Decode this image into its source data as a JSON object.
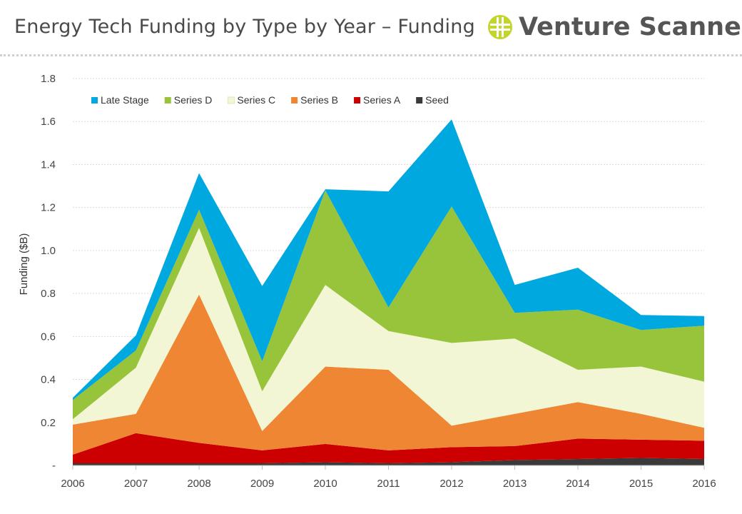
{
  "header": {
    "title": "Energy Tech Funding by Type by Year – Funding",
    "brand": "Venture Scanner"
  },
  "colors": {
    "late_stage": "#00a8e0",
    "series_d": "#98c43c",
    "series_c": "#f3f6d4",
    "series_b": "#ef8633",
    "series_a": "#cc0000",
    "seed": "#3a3a3a",
    "logo": "#c3d52b"
  },
  "chart_data": {
    "type": "area",
    "stacked": true,
    "title": "Energy Tech Funding by Type by Year – Funding",
    "xlabel": "",
    "ylabel": "Funding ($B)",
    "x": [
      "2006",
      "2007",
      "2008",
      "2009",
      "2010",
      "2011",
      "2012",
      "2013",
      "2014",
      "2015",
      "2016"
    ],
    "ylim": [
      0,
      1.8
    ],
    "yticks": [
      0,
      0.2,
      0.4,
      0.6,
      0.8,
      1.0,
      1.2,
      1.4,
      1.6,
      1.8
    ],
    "ytick_labels": [
      "-",
      "0.2",
      "0.4",
      "0.6",
      "0.8",
      "1.0",
      "1.2",
      "1.4",
      "1.6",
      "1.8"
    ],
    "grid": true,
    "legend_position": "top-left",
    "series": [
      {
        "name": "Seed",
        "color": "#3a3a3a",
        "values": [
          0.01,
          0.01,
          0.01,
          0.01,
          0.015,
          0.01,
          0.015,
          0.025,
          0.03,
          0.035,
          0.03
        ]
      },
      {
        "name": "Series A",
        "color": "#cc0000",
        "values": [
          0.04,
          0.14,
          0.095,
          0.06,
          0.085,
          0.06,
          0.07,
          0.065,
          0.095,
          0.085,
          0.085
        ]
      },
      {
        "name": "Series B",
        "color": "#ef8633",
        "values": [
          0.14,
          0.09,
          0.69,
          0.09,
          0.36,
          0.375,
          0.1,
          0.15,
          0.17,
          0.12,
          0.06
        ]
      },
      {
        "name": "Series C",
        "color": "#f3f6d4",
        "values": [
          0.025,
          0.215,
          0.31,
          0.185,
          0.38,
          0.18,
          0.385,
          0.35,
          0.15,
          0.22,
          0.215
        ]
      },
      {
        "name": "Series D",
        "color": "#98c43c",
        "values": [
          0.09,
          0.08,
          0.085,
          0.14,
          0.44,
          0.11,
          0.635,
          0.12,
          0.28,
          0.17,
          0.26
        ]
      },
      {
        "name": "Late Stage",
        "color": "#00a8e0",
        "values": [
          0.01,
          0.07,
          0.17,
          0.35,
          0.005,
          0.54,
          0.405,
          0.13,
          0.195,
          0.07,
          0.045
        ]
      }
    ],
    "legend_order": [
      "Late Stage",
      "Series D",
      "Series C",
      "Series B",
      "Series A",
      "Seed"
    ]
  }
}
